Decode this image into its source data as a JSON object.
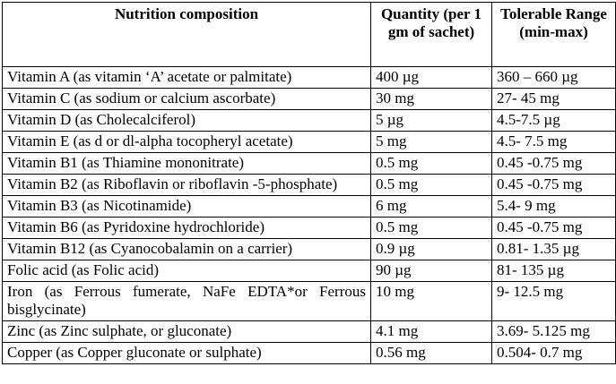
{
  "table": {
    "headers": [
      "Nutrition composition",
      "Quantity (per 1 gm of sachet)",
      "Tolerable Range (min-max)"
    ],
    "rows": [
      {
        "name": "Vitamin A (as vitamin ‘A’ acetate or palmitate)",
        "quantity": "400 µg",
        "range": "360 – 660 µg"
      },
      {
        "name": "Vitamin C (as sodium or calcium ascorbate)",
        "quantity": "30 mg",
        "range": "27- 45 mg"
      },
      {
        "name": "Vitamin D (as Cholecalciferol)",
        "quantity": "5 µg",
        "range": "4.5-7.5 µg"
      },
      {
        "name": "Vitamin E (as d or dl-alpha tocopheryl acetate)",
        "quantity": "5 mg",
        "range": "4.5- 7.5 mg"
      },
      {
        "name": "Vitamin B1 (as Thiamine mononitrate)",
        "quantity": "0.5 mg",
        "range": "0.45 -0.75 mg"
      },
      {
        "name": "Vitamin B2 (as Riboflavin or riboflavin -5-phosphate)",
        "quantity": "0.5 mg",
        "range": "0.45 -0.75 mg"
      },
      {
        "name": "Vitamin B3 (as Nicotinamide)",
        "quantity": "6 mg",
        "range": "5.4- 9 mg"
      },
      {
        "name": "Vitamin B6 (as Pyridoxine hydrochloride)",
        "quantity": "0.5 mg",
        "range": "0.45 -0.75 mg"
      },
      {
        "name": "Vitamin B12 (as Cyanocobalamin on a carrier)",
        "quantity": "0.9 µg",
        "range": "0.81- 1.35 µg"
      },
      {
        "name": "Folic acid (as Folic acid)",
        "quantity": "90 µg",
        "range": "81- 135 µg"
      },
      {
        "name": "Iron (as Ferrous fumerate, NaFe EDTA*or Ferrous bisglycinate)",
        "quantity": "10 mg",
        "range": "9- 12.5 mg"
      },
      {
        "name": "Zinc (as Zinc sulphate, or gluconate)",
        "quantity": "4.1 mg",
        "range": "3.69- 5.125 mg"
      },
      {
        "name": "Copper (as Copper gluconate or sulphate)",
        "quantity": "0.56 mg",
        "range": "0.504- 0.7 mg"
      }
    ]
  }
}
